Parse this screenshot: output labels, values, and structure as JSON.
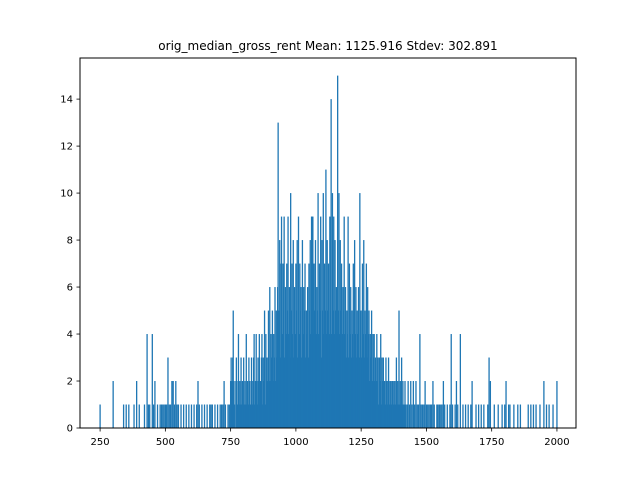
{
  "chart_data": {
    "type": "bar",
    "title": "orig_median_gross_rent  Mean: 1125.916  Stdev: 302.891",
    "xlabel": "",
    "ylabel": "",
    "xlim": [
      173,
      2073
    ],
    "ylim": [
      0,
      15.75
    ],
    "x_ticks": [
      250,
      500,
      750,
      1000,
      1250,
      1500,
      1750,
      2000
    ],
    "y_ticks": [
      0,
      2,
      4,
      6,
      8,
      10,
      12,
      14
    ],
    "grid": false,
    "legend": "none",
    "bar_color": "#1f77b4",
    "bar_width": 1.3,
    "bins": [
      [
        250,
        1
      ],
      [
        300,
        2
      ],
      [
        340,
        1
      ],
      [
        350,
        1
      ],
      [
        360,
        1
      ],
      [
        380,
        1
      ],
      [
        390,
        2
      ],
      [
        400,
        1
      ],
      [
        420,
        1
      ],
      [
        430,
        4
      ],
      [
        435,
        1
      ],
      [
        440,
        1
      ],
      [
        450,
        4
      ],
      [
        455,
        1
      ],
      [
        460,
        2
      ],
      [
        470,
        1
      ],
      [
        480,
        1
      ],
      [
        485,
        1
      ],
      [
        490,
        1
      ],
      [
        495,
        1
      ],
      [
        500,
        1
      ],
      [
        505,
        1
      ],
      [
        510,
        3
      ],
      [
        515,
        1
      ],
      [
        520,
        1
      ],
      [
        525,
        2
      ],
      [
        530,
        2
      ],
      [
        535,
        1
      ],
      [
        540,
        2
      ],
      [
        545,
        1
      ],
      [
        550,
        1
      ],
      [
        560,
        1
      ],
      [
        570,
        1
      ],
      [
        580,
        1
      ],
      [
        590,
        1
      ],
      [
        600,
        1
      ],
      [
        610,
        1
      ],
      [
        620,
        1
      ],
      [
        625,
        2
      ],
      [
        630,
        1
      ],
      [
        640,
        1
      ],
      [
        650,
        1
      ],
      [
        660,
        1
      ],
      [
        670,
        1
      ],
      [
        675,
        1
      ],
      [
        680,
        1
      ],
      [
        690,
        1
      ],
      [
        700,
        1
      ],
      [
        710,
        1
      ],
      [
        715,
        1
      ],
      [
        720,
        1
      ],
      [
        725,
        2
      ],
      [
        730,
        1
      ],
      [
        740,
        1
      ],
      [
        745,
        1
      ],
      [
        750,
        2
      ],
      [
        752,
        3
      ],
      [
        755,
        2
      ],
      [
        758,
        3
      ],
      [
        760,
        5
      ],
      [
        763,
        2
      ],
      [
        765,
        1
      ],
      [
        770,
        2
      ],
      [
        772,
        3
      ],
      [
        775,
        1
      ],
      [
        778,
        2
      ],
      [
        780,
        4
      ],
      [
        783,
        1
      ],
      [
        785,
        2
      ],
      [
        788,
        1
      ],
      [
        790,
        3
      ],
      [
        792,
        1
      ],
      [
        795,
        2
      ],
      [
        798,
        1
      ],
      [
        800,
        3
      ],
      [
        802,
        2
      ],
      [
        805,
        1
      ],
      [
        808,
        2
      ],
      [
        810,
        4
      ],
      [
        812,
        1
      ],
      [
        815,
        2
      ],
      [
        818,
        1
      ],
      [
        820,
        3
      ],
      [
        822,
        2
      ],
      [
        825,
        1
      ],
      [
        828,
        2
      ],
      [
        830,
        3
      ],
      [
        832,
        1
      ],
      [
        835,
        2
      ],
      [
        838,
        3
      ],
      [
        840,
        4
      ],
      [
        842,
        1
      ],
      [
        845,
        2
      ],
      [
        848,
        4
      ],
      [
        850,
        2
      ],
      [
        852,
        1
      ],
      [
        855,
        3
      ],
      [
        858,
        2
      ],
      [
        860,
        4
      ],
      [
        862,
        1
      ],
      [
        865,
        2
      ],
      [
        868,
        3
      ],
      [
        870,
        4
      ],
      [
        872,
        1
      ],
      [
        875,
        3
      ],
      [
        878,
        2
      ],
      [
        880,
        5
      ],
      [
        882,
        1
      ],
      [
        885,
        4
      ],
      [
        888,
        2
      ],
      [
        890,
        3
      ],
      [
        892,
        2
      ],
      [
        895,
        5
      ],
      [
        898,
        2
      ],
      [
        900,
        6
      ],
      [
        902,
        2
      ],
      [
        905,
        4
      ],
      [
        908,
        3
      ],
      [
        910,
        5
      ],
      [
        912,
        2
      ],
      [
        915,
        4
      ],
      [
        918,
        3
      ],
      [
        920,
        6
      ],
      [
        922,
        2
      ],
      [
        925,
        5
      ],
      [
        928,
        3
      ],
      [
        930,
        6
      ],
      [
        932,
        13
      ],
      [
        935,
        5
      ],
      [
        938,
        8
      ],
      [
        940,
        7
      ],
      [
        942,
        3
      ],
      [
        945,
        9
      ],
      [
        948,
        4
      ],
      [
        950,
        7
      ],
      [
        952,
        5
      ],
      [
        955,
        9
      ],
      [
        958,
        3
      ],
      [
        960,
        6
      ],
      [
        962,
        4
      ],
      [
        965,
        7
      ],
      [
        968,
        5
      ],
      [
        970,
        9
      ],
      [
        972,
        4
      ],
      [
        975,
        6
      ],
      [
        978,
        3
      ],
      [
        980,
        10
      ],
      [
        982,
        5
      ],
      [
        985,
        7
      ],
      [
        988,
        4
      ],
      [
        990,
        8
      ],
      [
        992,
        3
      ],
      [
        995,
        6
      ],
      [
        998,
        4
      ],
      [
        1000,
        7
      ],
      [
        1002,
        5
      ],
      [
        1005,
        8
      ],
      [
        1008,
        3
      ],
      [
        1010,
        9
      ],
      [
        1012,
        4
      ],
      [
        1015,
        7
      ],
      [
        1018,
        5
      ],
      [
        1020,
        6
      ],
      [
        1022,
        3
      ],
      [
        1025,
        8
      ],
      [
        1028,
        4
      ],
      [
        1030,
        6
      ],
      [
        1032,
        5
      ],
      [
        1035,
        7
      ],
      [
        1038,
        3
      ],
      [
        1040,
        5
      ],
      [
        1042,
        4
      ],
      [
        1045,
        6
      ],
      [
        1048,
        3
      ],
      [
        1050,
        7
      ],
      [
        1052,
        5
      ],
      [
        1055,
        8
      ],
      [
        1058,
        4
      ],
      [
        1060,
        9
      ],
      [
        1062,
        9
      ],
      [
        1065,
        9
      ],
      [
        1068,
        4
      ],
      [
        1070,
        7
      ],
      [
        1072,
        5
      ],
      [
        1075,
        8
      ],
      [
        1078,
        4
      ],
      [
        1080,
        6
      ],
      [
        1082,
        5
      ],
      [
        1085,
        10
      ],
      [
        1088,
        4
      ],
      [
        1090,
        7
      ],
      [
        1092,
        5
      ],
      [
        1095,
        9
      ],
      [
        1098,
        3
      ],
      [
        1100,
        8
      ],
      [
        1102,
        5
      ],
      [
        1105,
        10
      ],
      [
        1108,
        4
      ],
      [
        1110,
        7
      ],
      [
        1112,
        5
      ],
      [
        1115,
        11
      ],
      [
        1118,
        4
      ],
      [
        1120,
        8
      ],
      [
        1122,
        5
      ],
      [
        1125,
        7
      ],
      [
        1128,
        4
      ],
      [
        1130,
        9
      ],
      [
        1132,
        5
      ],
      [
        1135,
        14
      ],
      [
        1138,
        4
      ],
      [
        1140,
        10
      ],
      [
        1142,
        5
      ],
      [
        1145,
        9
      ],
      [
        1148,
        4
      ],
      [
        1150,
        8
      ],
      [
        1152,
        5
      ],
      [
        1155,
        6
      ],
      [
        1158,
        4
      ],
      [
        1160,
        15
      ],
      [
        1162,
        5
      ],
      [
        1165,
        10
      ],
      [
        1168,
        4
      ],
      [
        1170,
        8
      ],
      [
        1172,
        5
      ],
      [
        1175,
        7
      ],
      [
        1178,
        4
      ],
      [
        1180,
        6
      ],
      [
        1182,
        5
      ],
      [
        1185,
        9
      ],
      [
        1188,
        4
      ],
      [
        1190,
        6
      ],
      [
        1192,
        3
      ],
      [
        1195,
        5
      ],
      [
        1198,
        4
      ],
      [
        1200,
        9
      ],
      [
        1202,
        3
      ],
      [
        1205,
        7
      ],
      [
        1208,
        4
      ],
      [
        1210,
        6
      ],
      [
        1212,
        3
      ],
      [
        1215,
        5
      ],
      [
        1218,
        4
      ],
      [
        1220,
        7
      ],
      [
        1222,
        3
      ],
      [
        1225,
        8
      ],
      [
        1228,
        4
      ],
      [
        1230,
        6
      ],
      [
        1232,
        3
      ],
      [
        1235,
        5
      ],
      [
        1238,
        4
      ],
      [
        1240,
        6
      ],
      [
        1242,
        3
      ],
      [
        1245,
        10
      ],
      [
        1248,
        4
      ],
      [
        1250,
        5
      ],
      [
        1252,
        3
      ],
      [
        1255,
        7
      ],
      [
        1258,
        4
      ],
      [
        1260,
        8
      ],
      [
        1262,
        3
      ],
      [
        1265,
        5
      ],
      [
        1268,
        4
      ],
      [
        1270,
        7
      ],
      [
        1272,
        3
      ],
      [
        1275,
        6
      ],
      [
        1278,
        4
      ],
      [
        1280,
        5
      ],
      [
        1282,
        2
      ],
      [
        1285,
        4
      ],
      [
        1288,
        3
      ],
      [
        1290,
        5
      ],
      [
        1292,
        2
      ],
      [
        1295,
        4
      ],
      [
        1298,
        3
      ],
      [
        1300,
        4
      ],
      [
        1302,
        2
      ],
      [
        1305,
        3
      ],
      [
        1308,
        2
      ],
      [
        1310,
        4
      ],
      [
        1312,
        2
      ],
      [
        1315,
        3
      ],
      [
        1318,
        1
      ],
      [
        1320,
        3
      ],
      [
        1322,
        2
      ],
      [
        1325,
        4
      ],
      [
        1328,
        1
      ],
      [
        1330,
        3
      ],
      [
        1332,
        2
      ],
      [
        1335,
        3
      ],
      [
        1338,
        1
      ],
      [
        1340,
        2
      ],
      [
        1342,
        1
      ],
      [
        1345,
        3
      ],
      [
        1348,
        2
      ],
      [
        1350,
        2
      ],
      [
        1352,
        1
      ],
      [
        1355,
        3
      ],
      [
        1358,
        1
      ],
      [
        1360,
        2
      ],
      [
        1362,
        1
      ],
      [
        1365,
        2
      ],
      [
        1368,
        1
      ],
      [
        1370,
        2
      ],
      [
        1372,
        1
      ],
      [
        1375,
        2
      ],
      [
        1378,
        1
      ],
      [
        1380,
        2
      ],
      [
        1382,
        1
      ],
      [
        1385,
        3
      ],
      [
        1388,
        1
      ],
      [
        1390,
        2
      ],
      [
        1392,
        1
      ],
      [
        1395,
        5
      ],
      [
        1398,
        1
      ],
      [
        1400,
        2
      ],
      [
        1402,
        1
      ],
      [
        1405,
        3
      ],
      [
        1408,
        1
      ],
      [
        1410,
        2
      ],
      [
        1412,
        1
      ],
      [
        1415,
        1
      ],
      [
        1418,
        2
      ],
      [
        1420,
        1
      ],
      [
        1425,
        1
      ],
      [
        1430,
        2
      ],
      [
        1435,
        1
      ],
      [
        1440,
        2
      ],
      [
        1445,
        1
      ],
      [
        1450,
        2
      ],
      [
        1455,
        1
      ],
      [
        1460,
        2
      ],
      [
        1465,
        1
      ],
      [
        1470,
        1
      ],
      [
        1475,
        4
      ],
      [
        1480,
        1
      ],
      [
        1485,
        1
      ],
      [
        1490,
        1
      ],
      [
        1495,
        2
      ],
      [
        1500,
        1
      ],
      [
        1505,
        1
      ],
      [
        1510,
        1
      ],
      [
        1515,
        1
      ],
      [
        1520,
        1
      ],
      [
        1525,
        2
      ],
      [
        1530,
        1
      ],
      [
        1540,
        1
      ],
      [
        1545,
        1
      ],
      [
        1550,
        1
      ],
      [
        1555,
        1
      ],
      [
        1560,
        1
      ],
      [
        1565,
        2
      ],
      [
        1570,
        1
      ],
      [
        1580,
        1
      ],
      [
        1590,
        1
      ],
      [
        1595,
        4
      ],
      [
        1600,
        1
      ],
      [
        1610,
        1
      ],
      [
        1615,
        2
      ],
      [
        1620,
        1
      ],
      [
        1630,
        4
      ],
      [
        1640,
        1
      ],
      [
        1650,
        1
      ],
      [
        1660,
        1
      ],
      [
        1670,
        1
      ],
      [
        1675,
        2
      ],
      [
        1690,
        1
      ],
      [
        1700,
        1
      ],
      [
        1710,
        1
      ],
      [
        1720,
        1
      ],
      [
        1735,
        1
      ],
      [
        1740,
        3
      ],
      [
        1745,
        2
      ],
      [
        1760,
        1
      ],
      [
        1775,
        1
      ],
      [
        1790,
        1
      ],
      [
        1800,
        1
      ],
      [
        1805,
        2
      ],
      [
        1815,
        1
      ],
      [
        1820,
        1
      ],
      [
        1835,
        1
      ],
      [
        1850,
        1
      ],
      [
        1860,
        1
      ],
      [
        1890,
        1
      ],
      [
        1900,
        1
      ],
      [
        1910,
        1
      ],
      [
        1920,
        1
      ],
      [
        1935,
        1
      ],
      [
        1950,
        2
      ],
      [
        1960,
        1
      ],
      [
        1970,
        1
      ],
      [
        1985,
        1
      ],
      [
        2000,
        2
      ]
    ]
  }
}
